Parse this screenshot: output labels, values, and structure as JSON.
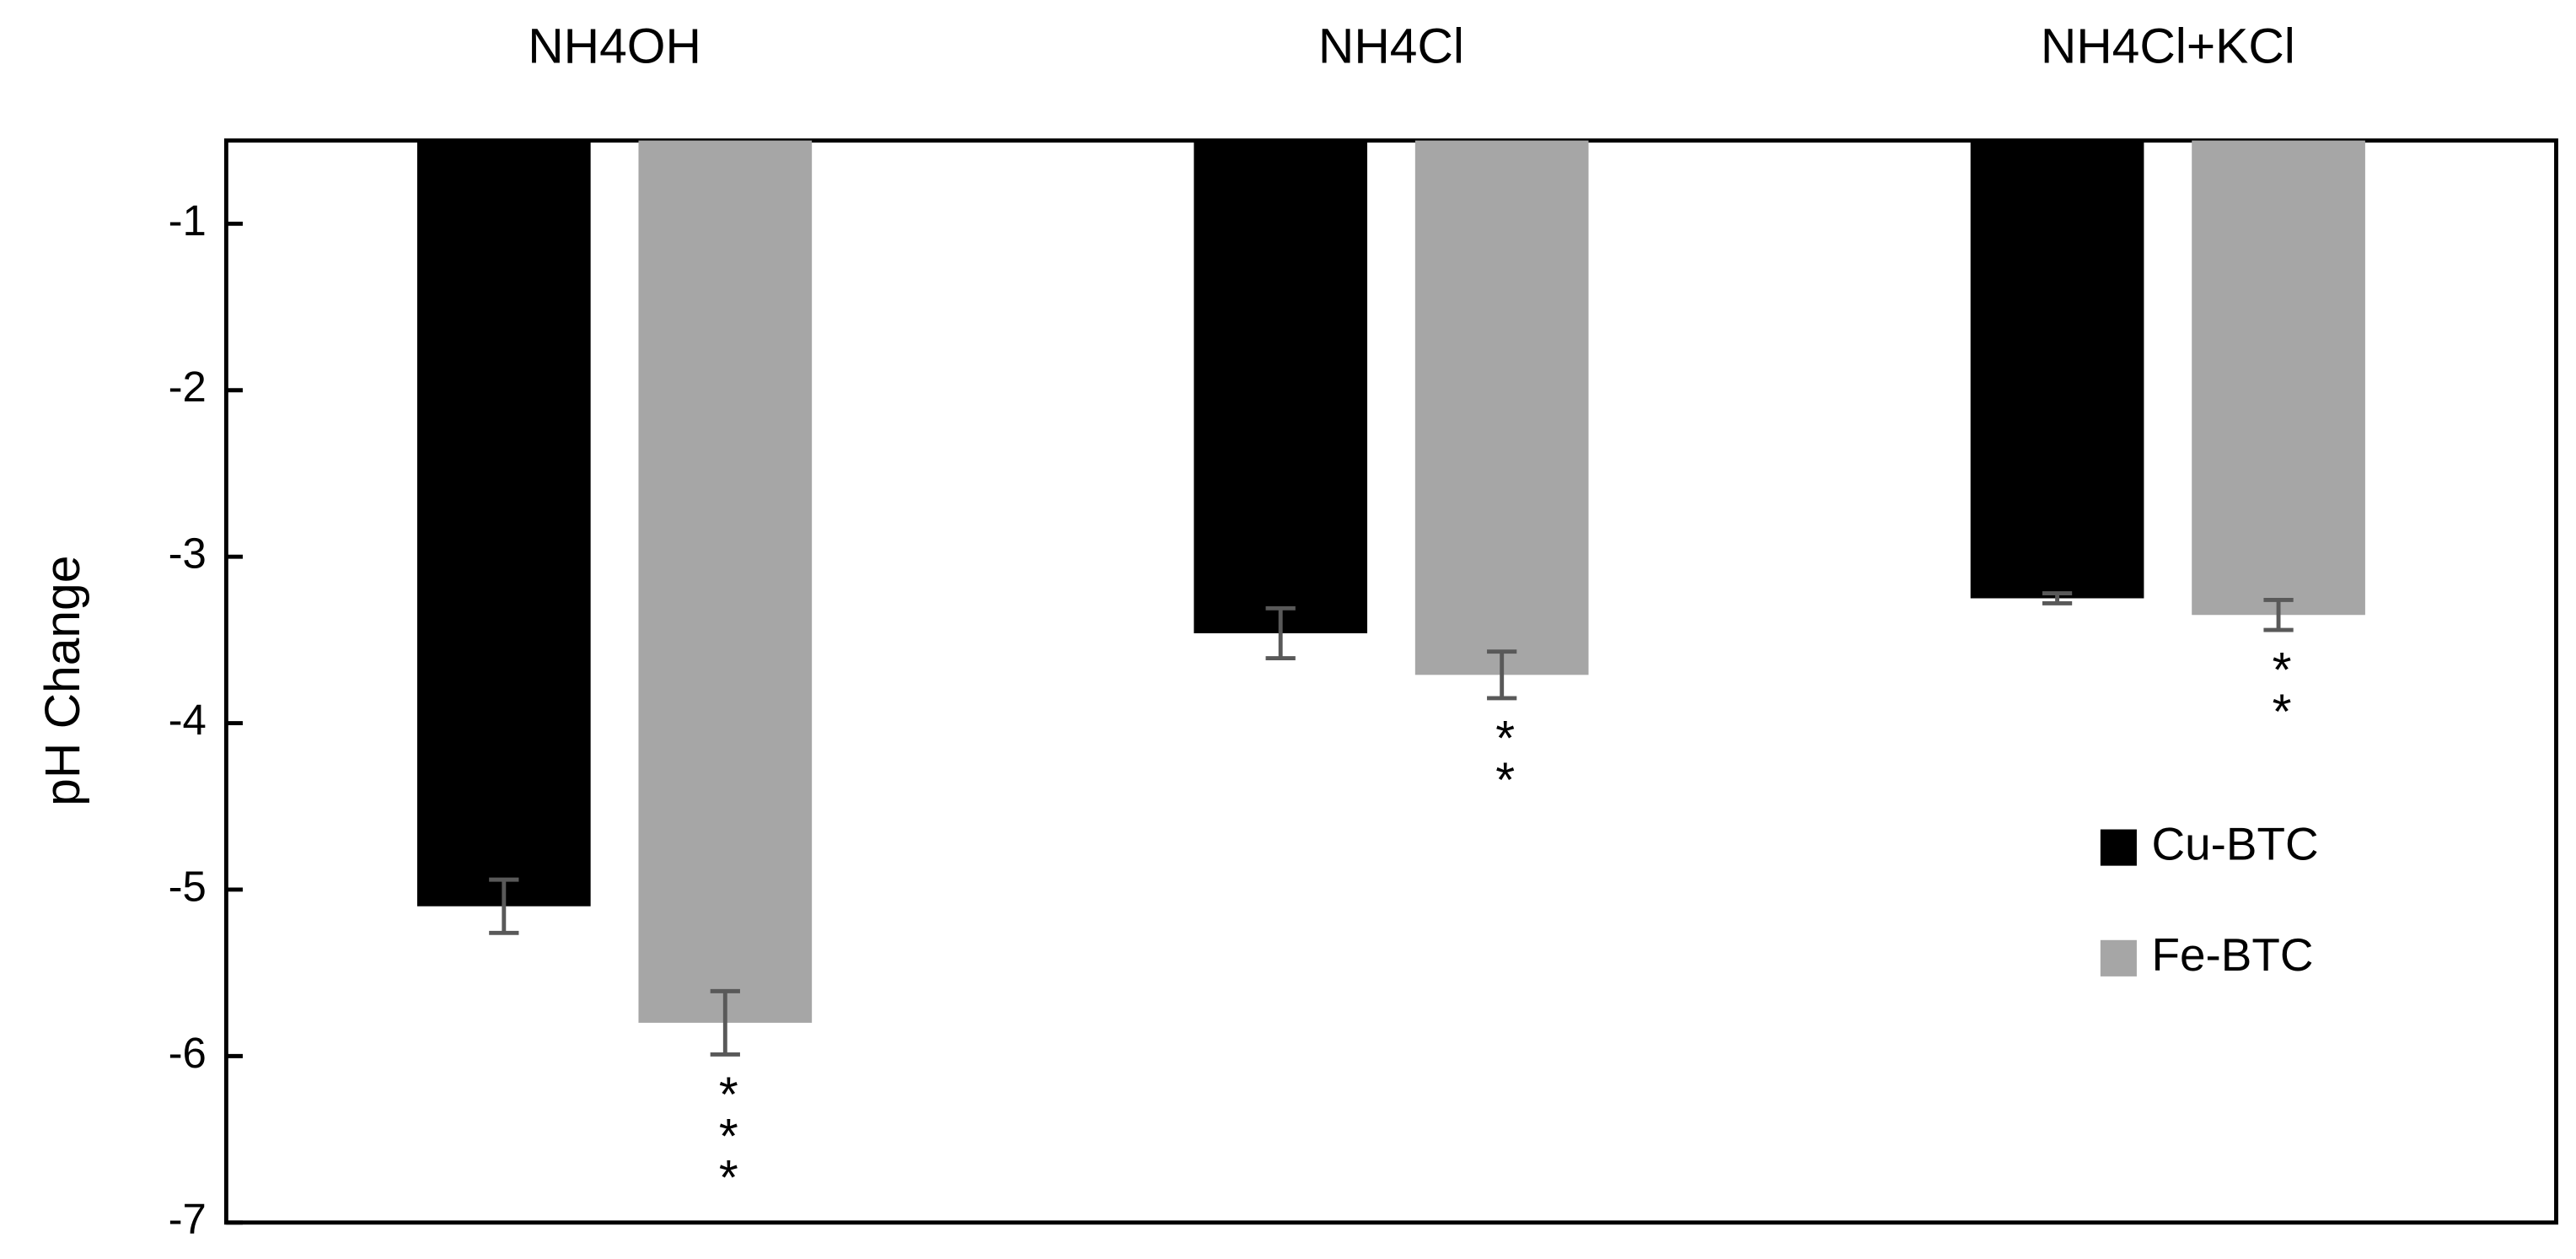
{
  "chart_data": {
    "type": "bar",
    "y_label": "pH Change",
    "categories": [
      "NH4OH",
      "NH4Cl",
      "NH4Cl+KCl"
    ],
    "series": [
      {
        "name": "Cu-BTC",
        "color": "#000000",
        "values": [
          -5.1,
          -3.46,
          -3.25
        ],
        "errors": [
          0.16,
          0.15,
          0.03
        ]
      },
      {
        "name": "Fe-BTC",
        "color": "#a6a6a6",
        "values": [
          -5.8,
          -3.71,
          -3.35
        ],
        "errors": [
          0.19,
          0.14,
          0.09
        ],
        "significance": [
          "***",
          "**",
          "**"
        ]
      }
    ],
    "ylim": [
      -7,
      -0.5
    ],
    "yticks": [
      -1,
      -2,
      -3,
      -4,
      -5,
      -6,
      -7
    ],
    "legend": "right",
    "error_color": "#595959"
  }
}
